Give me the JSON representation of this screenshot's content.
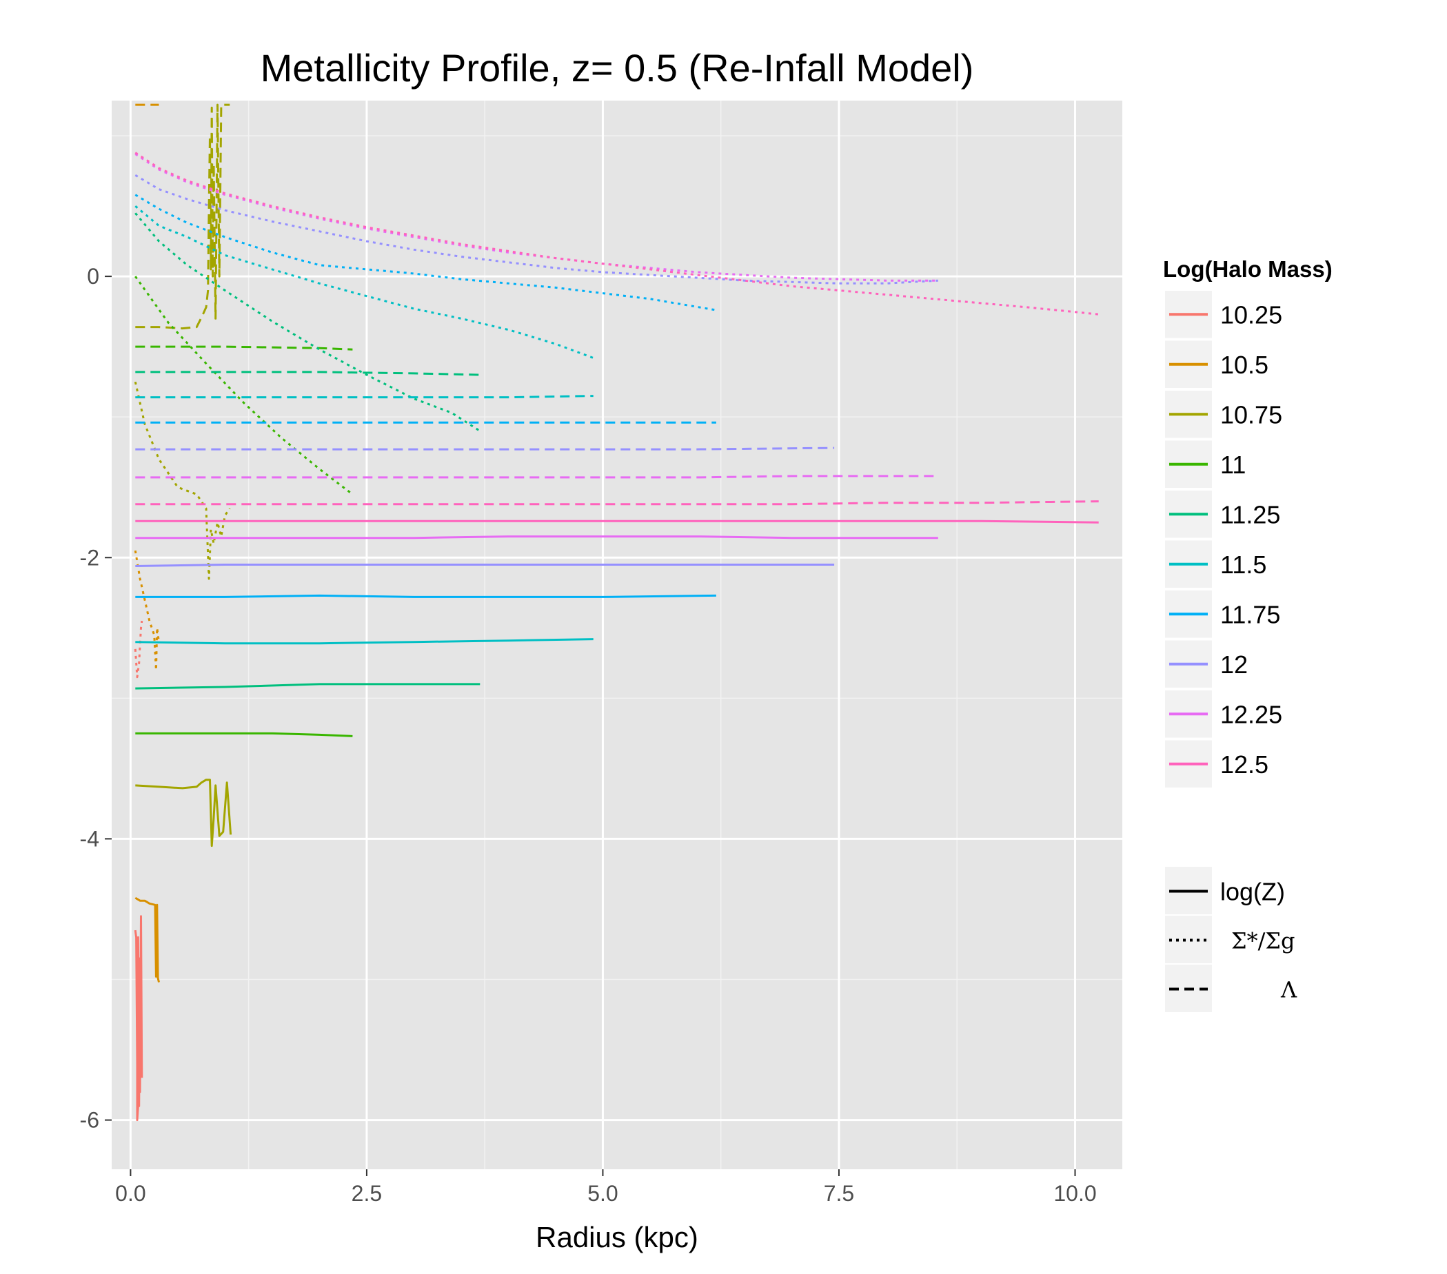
{
  "chart_data": {
    "type": "line",
    "title": "Metallicity Profile, z= 0.5 (Re-Infall Model)",
    "xlabel": "Radius (kpc)",
    "ylabel": "",
    "xlim": [
      -0.2,
      10.5
    ],
    "ylim": [
      -6.35,
      1.25
    ],
    "x_ticks": [
      0.0,
      2.5,
      5.0,
      7.5,
      10.0
    ],
    "x_tick_labels": [
      "0.0",
      "2.5",
      "5.0",
      "7.5",
      "10.0"
    ],
    "y_ticks": [
      -6,
      -4,
      -2,
      0
    ],
    "y_tick_labels": [
      "-6",
      "-4",
      "-2",
      "0"
    ],
    "grid": true,
    "legend_position": "right",
    "color_legend_title": "Log(Halo Mass)",
    "color_legend": [
      {
        "label": "10.25",
        "color": "#F8766D"
      },
      {
        "label": "10.5",
        "color": "#D89000"
      },
      {
        "label": "10.75",
        "color": "#A3A500"
      },
      {
        "label": "11",
        "color": "#39B600"
      },
      {
        "label": "11.25",
        "color": "#00BF7D"
      },
      {
        "label": "11.5",
        "color": "#00BFC4"
      },
      {
        "label": "11.75",
        "color": "#00B0F6"
      },
      {
        "label": "12",
        "color": "#9590FF"
      },
      {
        "label": "12.25",
        "color": "#E76BF3"
      },
      {
        "label": "12.5",
        "color": "#FF62BC"
      }
    ],
    "linetype_legend": [
      {
        "label": "log(Z)",
        "linetype": "solid"
      },
      {
        "label": "Σ*/Σg",
        "linetype": "dotted"
      },
      {
        "label": "Λ",
        "linetype": "dashed"
      }
    ],
    "series": [
      {
        "halo_mass": "10.25",
        "linetype": "solid",
        "x": [
          0.05,
          0.06,
          0.07,
          0.07,
          0.08,
          0.08,
          0.09,
          0.1,
          0.1,
          0.11,
          0.12
        ],
        "y": [
          -4.65,
          -4.7,
          -5.6,
          -6.0,
          -5.9,
          -4.7,
          -5.9,
          -4.85,
          -5.8,
          -4.55,
          -5.7
        ]
      },
      {
        "halo_mass": "10.25",
        "linetype": "dotted",
        "x": [
          0.05,
          0.07,
          0.09,
          0.11,
          0.12
        ],
        "y": [
          -2.65,
          -2.85,
          -2.75,
          -2.5,
          -2.45
        ]
      },
      {
        "halo_mass": "10.5",
        "linetype": "solid",
        "x": [
          0.05,
          0.1,
          0.15,
          0.2,
          0.26,
          0.27,
          0.28,
          0.29,
          0.3
        ],
        "y": [
          -4.42,
          -4.44,
          -4.44,
          -4.46,
          -4.47,
          -4.98,
          -4.47,
          -4.99,
          -5.02
        ]
      },
      {
        "halo_mass": "10.5",
        "linetype": "dotted",
        "x": [
          0.05,
          0.1,
          0.15,
          0.2,
          0.25,
          0.27,
          0.28,
          0.3
        ],
        "y": [
          -1.95,
          -2.15,
          -2.3,
          -2.45,
          -2.55,
          -2.8,
          -2.5,
          -2.6
        ]
      },
      {
        "halo_mass": "10.5",
        "linetype": "dashed",
        "x": [
          0.05,
          0.15,
          0.25,
          0.3
        ],
        "y": [
          1.22,
          1.22,
          1.22,
          1.22
        ]
      },
      {
        "halo_mass": "10.75",
        "linetype": "solid",
        "x": [
          0.05,
          0.3,
          0.55,
          0.7,
          0.75,
          0.8,
          0.84,
          0.86,
          0.88,
          0.9,
          0.94,
          0.98,
          1.02,
          1.06
        ],
        "y": [
          -3.62,
          -3.63,
          -3.64,
          -3.63,
          -3.6,
          -3.58,
          -3.58,
          -4.05,
          -3.85,
          -3.62,
          -3.98,
          -3.95,
          -3.6,
          -3.97
        ]
      },
      {
        "halo_mass": "10.75",
        "linetype": "dotted",
        "x": [
          0.05,
          0.15,
          0.3,
          0.5,
          0.7,
          0.8,
          0.83,
          0.85,
          0.88,
          0.92,
          0.96,
          1.0,
          1.05
        ],
        "y": [
          -0.75,
          -1.05,
          -1.3,
          -1.5,
          -1.55,
          -1.65,
          -2.15,
          -1.8,
          -1.9,
          -1.75,
          -1.85,
          -1.7,
          -1.65
        ]
      },
      {
        "halo_mass": "10.75",
        "linetype": "dashed",
        "x": [
          0.05,
          0.3,
          0.55,
          0.7,
          0.76,
          0.8,
          0.82,
          0.83,
          0.84,
          0.85,
          0.86,
          0.87,
          0.88,
          0.9,
          0.92,
          0.94,
          0.96,
          1.0,
          1.05
        ],
        "y": [
          -0.36,
          -0.36,
          -0.37,
          -0.36,
          -0.28,
          -0.22,
          -0.1,
          0.5,
          1.0,
          0.05,
          1.2,
          0.0,
          0.8,
          -0.3,
          1.22,
          0.0,
          1.22,
          1.22,
          1.22
        ]
      },
      {
        "halo_mass": "11",
        "linetype": "solid",
        "x": [
          0.05,
          0.5,
          1.0,
          1.5,
          2.0,
          2.35
        ],
        "y": [
          -3.25,
          -3.25,
          -3.25,
          -3.25,
          -3.26,
          -3.27
        ]
      },
      {
        "halo_mass": "11",
        "linetype": "dotted",
        "x": [
          0.05,
          0.4,
          0.8,
          1.2,
          1.6,
          2.0,
          2.35
        ],
        "y": [
          0.0,
          -0.33,
          -0.62,
          -0.9,
          -1.15,
          -1.37,
          -1.55
        ]
      },
      {
        "halo_mass": "11",
        "linetype": "dashed",
        "x": [
          0.05,
          1.0,
          2.0,
          2.35
        ],
        "y": [
          -0.5,
          -0.5,
          -0.51,
          -0.52
        ]
      },
      {
        "halo_mass": "11.25",
        "linetype": "solid",
        "x": [
          0.05,
          1.0,
          2.0,
          3.0,
          3.7
        ],
        "y": [
          -2.93,
          -2.92,
          -2.9,
          -2.9,
          -2.9
        ]
      },
      {
        "halo_mass": "11.25",
        "linetype": "dotted",
        "x": [
          0.05,
          0.3,
          0.6,
          1.0,
          1.5,
          2.0,
          2.5,
          3.0,
          3.4,
          3.7
        ],
        "y": [
          0.45,
          0.25,
          0.08,
          -0.1,
          -0.32,
          -0.52,
          -0.7,
          -0.87,
          -0.97,
          -1.1
        ]
      },
      {
        "halo_mass": "11.25",
        "linetype": "dashed",
        "x": [
          0.05,
          1.0,
          2.0,
          3.0,
          3.7
        ],
        "y": [
          -0.68,
          -0.68,
          -0.68,
          -0.69,
          -0.7
        ]
      },
      {
        "halo_mass": "11.5",
        "linetype": "solid",
        "x": [
          0.05,
          1.0,
          2.0,
          3.0,
          4.0,
          4.9
        ],
        "y": [
          -2.6,
          -2.61,
          -2.61,
          -2.6,
          -2.59,
          -2.58
        ]
      },
      {
        "halo_mass": "11.5",
        "linetype": "dotted",
        "x": [
          0.05,
          0.3,
          0.6,
          1.0,
          1.5,
          2.0,
          2.5,
          3.0,
          3.5,
          4.0,
          4.5,
          4.9
        ],
        "y": [
          0.5,
          0.36,
          0.28,
          0.15,
          0.05,
          -0.05,
          -0.14,
          -0.23,
          -0.3,
          -0.38,
          -0.48,
          -0.58
        ]
      },
      {
        "halo_mass": "11.5",
        "linetype": "dashed",
        "x": [
          0.05,
          1.0,
          2.0,
          3.0,
          4.0,
          4.9
        ],
        "y": [
          -0.86,
          -0.86,
          -0.86,
          -0.86,
          -0.86,
          -0.85
        ]
      },
      {
        "halo_mass": "11.75",
        "linetype": "solid",
        "x": [
          0.05,
          1.0,
          2.0,
          3.0,
          4.0,
          5.0,
          6.2
        ],
        "y": [
          -2.28,
          -2.28,
          -2.27,
          -2.28,
          -2.28,
          -2.28,
          -2.27
        ]
      },
      {
        "halo_mass": "11.75",
        "linetype": "dotted",
        "x": [
          0.05,
          0.3,
          0.6,
          1.0,
          1.5,
          2.0,
          2.5,
          3.0,
          3.5,
          4.0,
          4.5,
          5.0,
          5.5,
          6.2
        ],
        "y": [
          0.58,
          0.48,
          0.38,
          0.28,
          0.17,
          0.08,
          0.05,
          0.02,
          -0.02,
          -0.05,
          -0.08,
          -0.12,
          -0.16,
          -0.24
        ]
      },
      {
        "halo_mass": "11.75",
        "linetype": "dashed",
        "x": [
          0.05,
          1.0,
          2.0,
          3.0,
          4.0,
          5.0,
          6.2
        ],
        "y": [
          -1.04,
          -1.04,
          -1.04,
          -1.04,
          -1.04,
          -1.04,
          -1.04
        ]
      },
      {
        "halo_mass": "12",
        "linetype": "solid",
        "x": [
          0.05,
          1.0,
          2.0,
          3.0,
          4.0,
          5.0,
          6.0,
          7.45
        ],
        "y": [
          -2.06,
          -2.05,
          -2.05,
          -2.05,
          -2.05,
          -2.05,
          -2.05,
          -2.05
        ]
      },
      {
        "halo_mass": "12",
        "linetype": "dotted",
        "x": [
          0.05,
          0.3,
          0.6,
          1.0,
          1.5,
          2.0,
          2.5,
          3.0,
          3.5,
          4.0,
          4.5,
          5.0,
          5.5,
          6.0,
          6.5,
          7.0,
          7.5,
          8.0,
          8.55
        ],
        "y": [
          0.72,
          0.62,
          0.55,
          0.47,
          0.39,
          0.32,
          0.25,
          0.19,
          0.14,
          0.1,
          0.06,
          0.03,
          0.01,
          -0.01,
          -0.03,
          -0.04,
          -0.05,
          -0.05,
          -0.03
        ]
      },
      {
        "halo_mass": "12",
        "linetype": "dashed",
        "x": [
          0.05,
          1.0,
          2.0,
          3.0,
          4.0,
          5.0,
          6.0,
          7.45
        ],
        "y": [
          -1.23,
          -1.23,
          -1.23,
          -1.23,
          -1.23,
          -1.23,
          -1.23,
          -1.22
        ]
      },
      {
        "halo_mass": "12.25",
        "linetype": "solid",
        "x": [
          0.05,
          1.0,
          2.0,
          3.0,
          4.0,
          5.0,
          6.0,
          7.0,
          8.55
        ],
        "y": [
          -1.86,
          -1.86,
          -1.86,
          -1.86,
          -1.85,
          -1.85,
          -1.85,
          -1.86,
          -1.86
        ]
      },
      {
        "halo_mass": "12.25",
        "linetype": "dotted",
        "x": [
          0.05,
          0.3,
          0.6,
          1.0,
          1.5,
          2.0,
          2.5,
          3.0,
          3.5,
          4.0,
          4.5,
          5.0,
          5.5,
          6.0,
          6.5,
          7.0,
          7.5,
          8.0,
          8.55
        ],
        "y": [
          0.87,
          0.76,
          0.67,
          0.58,
          0.49,
          0.41,
          0.34,
          0.28,
          0.22,
          0.17,
          0.13,
          0.09,
          0.06,
          0.03,
          0.01,
          -0.01,
          -0.02,
          -0.03,
          -0.03
        ]
      },
      {
        "halo_mass": "12.25",
        "linetype": "dashed",
        "x": [
          0.05,
          1.0,
          2.0,
          3.0,
          4.0,
          5.0,
          6.0,
          7.0,
          8.55
        ],
        "y": [
          -1.43,
          -1.43,
          -1.43,
          -1.43,
          -1.43,
          -1.43,
          -1.43,
          -1.42,
          -1.42
        ]
      },
      {
        "halo_mass": "12.5",
        "linetype": "solid",
        "x": [
          0.05,
          1.0,
          2.0,
          3.0,
          4.0,
          5.0,
          6.0,
          7.0,
          8.0,
          9.0,
          10.25
        ],
        "y": [
          -1.74,
          -1.74,
          -1.74,
          -1.74,
          -1.74,
          -1.74,
          -1.74,
          -1.74,
          -1.74,
          -1.74,
          -1.75
        ]
      },
      {
        "halo_mass": "12.5",
        "linetype": "dotted",
        "x": [
          0.05,
          0.3,
          0.6,
          1.0,
          1.5,
          2.0,
          2.5,
          3.0,
          3.5,
          4.0,
          4.5,
          5.0,
          5.5,
          6.0,
          6.5,
          7.0,
          7.5,
          8.0,
          8.5,
          9.0,
          9.5,
          10.25
        ],
        "y": [
          0.88,
          0.77,
          0.68,
          0.59,
          0.5,
          0.42,
          0.35,
          0.29,
          0.23,
          0.18,
          0.13,
          0.09,
          0.05,
          0.01,
          -0.03,
          -0.07,
          -0.1,
          -0.13,
          -0.16,
          -0.19,
          -0.22,
          -0.27
        ]
      },
      {
        "halo_mass": "12.5",
        "linetype": "dashed",
        "x": [
          0.05,
          1.0,
          2.0,
          3.0,
          4.0,
          5.0,
          6.0,
          7.0,
          8.0,
          9.0,
          10.25
        ],
        "y": [
          -1.62,
          -1.62,
          -1.62,
          -1.62,
          -1.62,
          -1.62,
          -1.62,
          -1.62,
          -1.61,
          -1.61,
          -1.6
        ]
      }
    ]
  }
}
